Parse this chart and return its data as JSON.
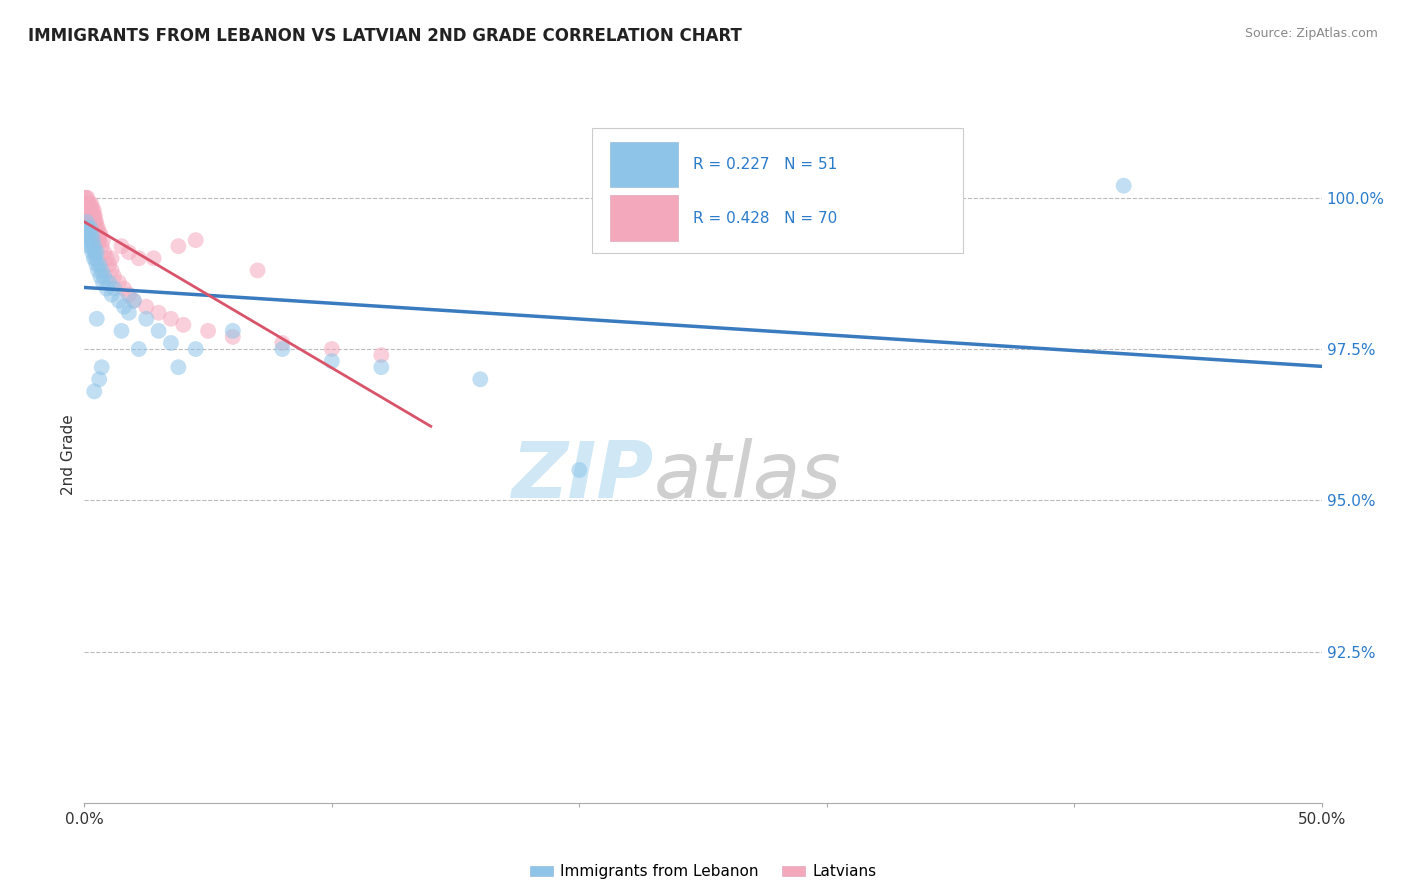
{
  "title": "IMMIGRANTS FROM LEBANON VS LATVIAN 2ND GRADE CORRELATION CHART",
  "source_text": "Source: ZipAtlas.com",
  "ylabel": "2nd Grade",
  "xlim": [
    0.0,
    50.0
  ],
  "ylim": [
    90.0,
    101.5
  ],
  "yticks": [
    92.5,
    95.0,
    97.5,
    100.0
  ],
  "ytick_labels": [
    "92.5%",
    "95.0%",
    "97.5%",
    "100.0%"
  ],
  "xticks": [
    0.0,
    10.0,
    20.0,
    30.0,
    40.0,
    50.0
  ],
  "xtick_labels": [
    "0.0%",
    "",
    "",
    "",
    "",
    "50.0%"
  ],
  "legend_blue_label": "Immigrants from Lebanon",
  "legend_pink_label": "Latvians",
  "R_blue": 0.227,
  "N_blue": 51,
  "R_pink": 0.428,
  "N_pink": 70,
  "blue_color": "#8ec4e8",
  "pink_color": "#f4a8bc",
  "blue_line_color": "#3a7bbf",
  "pink_line_color": "#d9546a",
  "watermark_zip_color": "#c8e4f5",
  "watermark_atlas_color": "#c0c0c0",
  "blue_points_x": [
    0.05,
    0.08,
    0.1,
    0.12,
    0.15,
    0.18,
    0.2,
    0.22,
    0.25,
    0.28,
    0.3,
    0.32,
    0.35,
    0.38,
    0.4,
    0.42,
    0.45,
    0.48,
    0.5,
    0.55,
    0.6,
    0.65,
    0.7,
    0.75,
    0.8,
    0.9,
    1.0,
    1.1,
    1.2,
    1.4,
    1.6,
    1.8,
    2.0,
    2.5,
    3.0,
    3.5,
    4.5,
    6.0,
    8.0,
    10.0,
    12.0,
    16.0,
    20.0,
    0.5,
    0.7,
    1.5,
    2.2,
    3.8,
    42.0,
    0.4,
    0.6
  ],
  "blue_points_y": [
    99.5,
    99.4,
    99.6,
    99.3,
    99.5,
    99.2,
    99.4,
    99.3,
    99.5,
    99.2,
    99.4,
    99.1,
    99.3,
    99.0,
    99.2,
    99.1,
    99.0,
    98.9,
    99.1,
    98.8,
    98.9,
    98.7,
    98.8,
    98.6,
    98.7,
    98.5,
    98.6,
    98.4,
    98.5,
    98.3,
    98.2,
    98.1,
    98.3,
    98.0,
    97.8,
    97.6,
    97.5,
    97.8,
    97.5,
    97.3,
    97.2,
    97.0,
    95.5,
    98.0,
    97.2,
    97.8,
    97.5,
    97.2,
    100.2,
    96.8,
    97.0
  ],
  "pink_points_x": [
    0.03,
    0.05,
    0.07,
    0.08,
    0.1,
    0.12,
    0.13,
    0.15,
    0.17,
    0.18,
    0.2,
    0.22,
    0.23,
    0.25,
    0.27,
    0.28,
    0.3,
    0.32,
    0.33,
    0.35,
    0.37,
    0.38,
    0.4,
    0.42,
    0.43,
    0.45,
    0.48,
    0.5,
    0.55,
    0.6,
    0.65,
    0.7,
    0.75,
    0.8,
    0.9,
    1.0,
    1.1,
    1.2,
    1.4,
    1.6,
    1.8,
    2.0,
    2.5,
    3.0,
    3.5,
    4.0,
    5.0,
    6.0,
    8.0,
    10.0,
    12.0,
    0.42,
    0.35,
    2.2,
    1.5,
    4.5,
    0.28,
    0.6,
    0.38,
    1.8,
    0.22,
    0.15,
    0.5,
    3.8,
    0.32,
    7.0,
    0.45,
    1.1,
    0.58,
    2.8
  ],
  "pink_points_y": [
    100.0,
    99.9,
    100.0,
    99.9,
    99.8,
    100.0,
    99.9,
    99.8,
    99.9,
    99.8,
    99.7,
    99.8,
    99.9,
    99.7,
    99.8,
    99.9,
    99.6,
    99.7,
    99.8,
    99.6,
    99.7,
    99.8,
    99.5,
    99.6,
    99.7,
    99.5,
    99.6,
    99.4,
    99.5,
    99.3,
    99.4,
    99.2,
    99.3,
    99.1,
    99.0,
    98.9,
    98.8,
    98.7,
    98.6,
    98.5,
    98.4,
    98.3,
    98.2,
    98.1,
    98.0,
    97.9,
    97.8,
    97.7,
    97.6,
    97.5,
    97.4,
    99.6,
    99.7,
    99.0,
    99.2,
    99.3,
    99.8,
    99.4,
    99.7,
    99.1,
    99.8,
    99.9,
    99.5,
    99.2,
    99.6,
    98.8,
    99.4,
    99.0,
    99.3,
    99.0
  ]
}
